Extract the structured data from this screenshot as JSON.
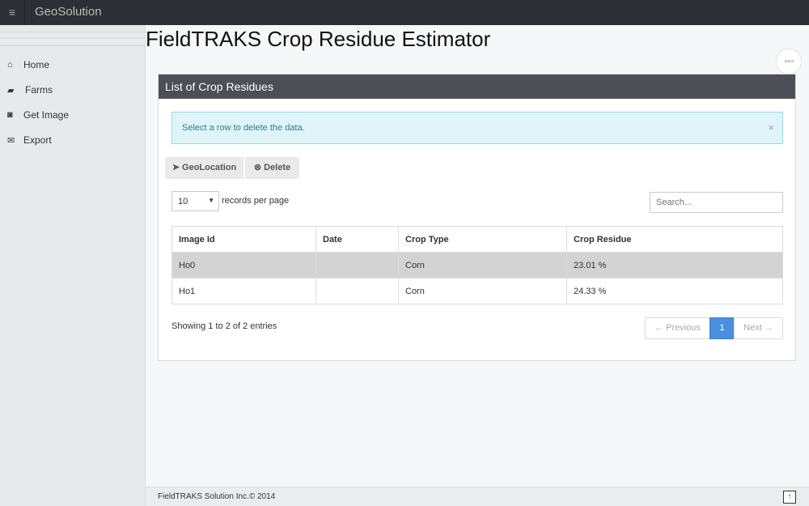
{
  "app": {
    "brand": "GeoSolution",
    "menu_icon": "hamburger-icon"
  },
  "sidebar": {
    "items": [
      {
        "label": "Home",
        "icon": "home-icon",
        "glyph": "⌂"
      },
      {
        "label": "Farms",
        "icon": "farm-icon",
        "glyph": "▰"
      },
      {
        "label": "Get Image",
        "icon": "camera-icon",
        "glyph": "◙"
      },
      {
        "label": "Export",
        "icon": "envelope-icon",
        "glyph": "✉"
      }
    ]
  },
  "page": {
    "title": "FieldTRAKS Crop Residue Estimator"
  },
  "panel": {
    "title": "List of Crop Residues",
    "alert": "Select a row to delete the data.",
    "alert_close": "×",
    "geolocation_label": "GeoLocation",
    "delete_label": "Delete",
    "per_page": "10",
    "per_page_label": "records per page",
    "search_placeholder": "Search...",
    "columns": [
      "Image Id",
      "Date",
      "Crop Type",
      "Crop Residue"
    ],
    "rows": [
      [
        "Ho0",
        "",
        "Corn",
        "23.01 %"
      ],
      [
        "Ho1",
        "",
        "Corn",
        "24.33 %"
      ]
    ],
    "info": "Showing 1 to 2 of 2 entries",
    "pagination": {
      "previous": "← Previous",
      "current": "1",
      "next": "Next →"
    }
  },
  "footer": {
    "text": "FieldTRAKS Solution Inc.© 2014"
  },
  "colors": {
    "topbar": "#2e2f34",
    "panel_header": "#4d4f57",
    "active_page": "#4a8fdf",
    "selected_row": "#d3d3d3"
  }
}
